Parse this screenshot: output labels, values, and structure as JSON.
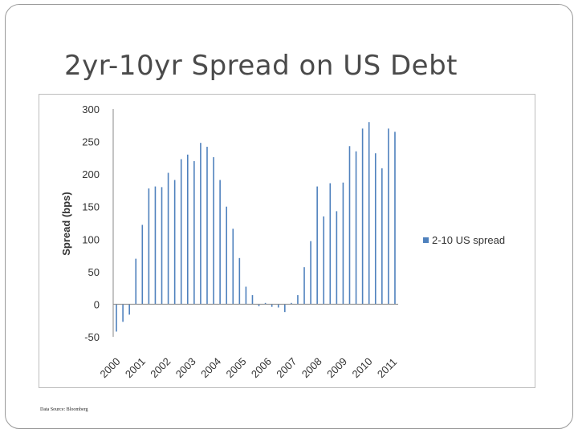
{
  "slide": {
    "title": "2yr-10yr Spread on US Debt",
    "source": "Data Source: Bloomberg"
  },
  "colors": {
    "bar": "#4f81bd",
    "axis": "#8a8a8a",
    "text": "#333333"
  },
  "chart_data": {
    "type": "bar",
    "title": "",
    "xlabel": "",
    "ylabel": "Spread (bps)",
    "ylim": [
      -50,
      300
    ],
    "yticks": [
      -50,
      0,
      50,
      100,
      150,
      200,
      250,
      300
    ],
    "x_tick_labels": [
      "2000",
      "2001",
      "2002",
      "2003",
      "2004",
      "2005",
      "2006",
      "2007",
      "2008",
      "2009",
      "2010",
      "2011"
    ],
    "grid": false,
    "legend_position": "right",
    "series": [
      {
        "name": "2-10 US spread",
        "values": [
          -42,
          -27,
          -16,
          70,
          122,
          178,
          181,
          180,
          202,
          191,
          223,
          230,
          220,
          248,
          242,
          226,
          191,
          150,
          116,
          71,
          27,
          14,
          -3,
          2,
          -4,
          -5,
          -12,
          2,
          14,
          57,
          97,
          181,
          135,
          186,
          143,
          187,
          243,
          235,
          270,
          280,
          232,
          209,
          270,
          265
        ]
      }
    ]
  }
}
